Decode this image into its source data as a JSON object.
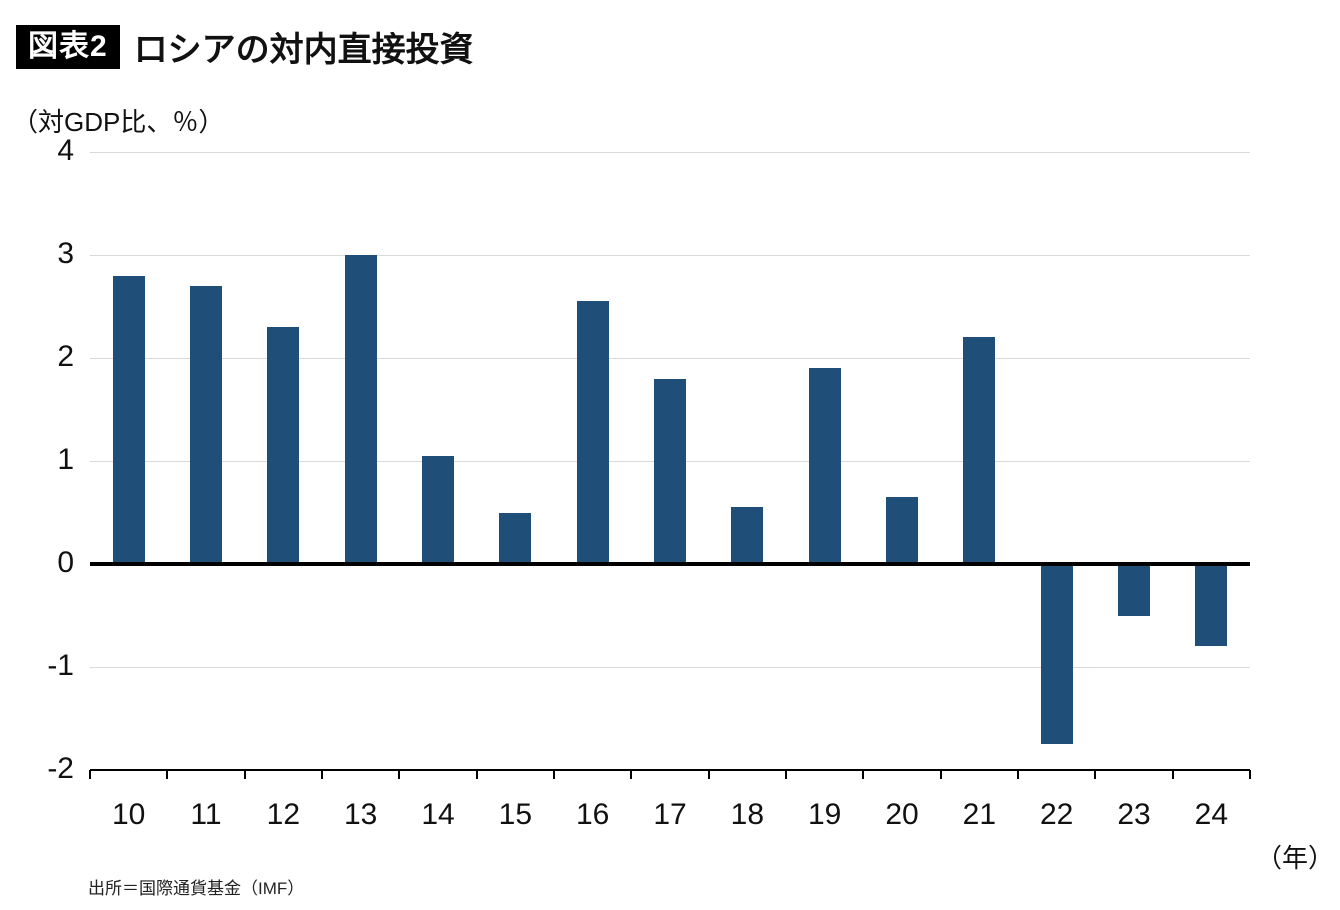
{
  "header": {
    "badge": "図表2",
    "title": "ロシアの対内直接投資"
  },
  "x_unit_label": "（年）",
  "source": "出所＝国際通貨基金（IMF）",
  "chart_data": {
    "type": "bar",
    "title": "ロシアの対内直接投資",
    "xlabel": "（年）",
    "ylabel": "（対GDP比、％）",
    "categories": [
      "10",
      "11",
      "12",
      "13",
      "14",
      "15",
      "16",
      "17",
      "18",
      "19",
      "20",
      "21",
      "22",
      "23",
      "24"
    ],
    "values": [
      2.8,
      2.7,
      2.3,
      3.0,
      1.05,
      0.5,
      2.55,
      1.8,
      0.55,
      1.9,
      0.65,
      2.2,
      -1.75,
      -0.5,
      -0.8
    ],
    "ylim": [
      -2,
      4
    ],
    "yticks": [
      4,
      3,
      2,
      1,
      0,
      -1,
      -2
    ],
    "bar_color": "#1f4e79",
    "gridline_color": "#d9d9d9",
    "grid": true,
    "legend": "none",
    "zero_baseline": true
  }
}
